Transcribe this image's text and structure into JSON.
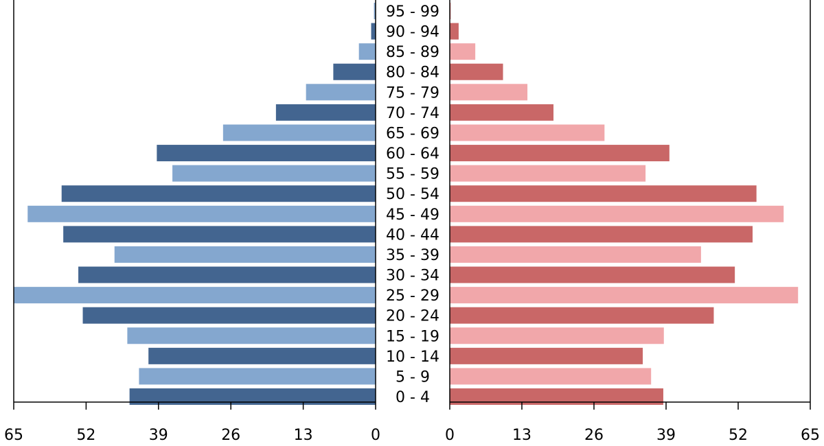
{
  "chart_data": {
    "type": "bar",
    "orientation": "horizontal",
    "categories": [
      "95 - 99",
      "90 - 94",
      "85 - 89",
      "80 - 84",
      "75 - 79",
      "70 - 74",
      "65 - 69",
      "60 - 64",
      "55 - 59",
      "50 - 54",
      "45 - 49",
      "40 - 44",
      "35 - 39",
      "30 - 34",
      "25 - 29",
      "20 - 24",
      "15 - 19",
      "10 - 14",
      "5 - 9",
      "0 - 4"
    ],
    "series": [
      {
        "side": "left",
        "values": [
          0.3,
          0.8,
          3,
          7.6,
          12.5,
          17.9,
          27.4,
          39.3,
          36.5,
          56.4,
          62.5,
          56.1,
          46.9,
          53.4,
          65,
          52.6,
          44.6,
          40.8,
          42.5,
          44.2
        ],
        "colors": [
          "#436590",
          "#84a7cf"
        ]
      },
      {
        "side": "right",
        "values": [
          0.2,
          1.6,
          4.6,
          9.6,
          14,
          18.7,
          27.9,
          39.6,
          35.3,
          55.3,
          60.2,
          54.6,
          45.3,
          51.4,
          62.8,
          47.6,
          38.6,
          34.8,
          36.3,
          38.5
        ],
        "colors": [
          "#c96767",
          "#f1a7aa"
        ]
      }
    ],
    "xlim": [
      0,
      65
    ],
    "left_ticks": [
      "65",
      "52",
      "39",
      "26",
      "13",
      "0"
    ],
    "right_ticks": [
      "0",
      "13",
      "26",
      "39",
      "52",
      "65"
    ]
  }
}
